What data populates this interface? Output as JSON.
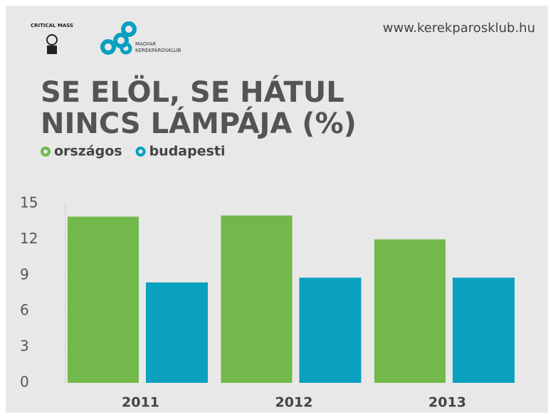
{
  "logos": {
    "critical_mass": "CRITICAL MASS",
    "club_line1": "MAGYAR",
    "club_line2": "KERÉKPÁROSKLUB"
  },
  "chart_data": {
    "type": "bar",
    "source": "www.kerekparosklub.hu",
    "title": [
      "SE ELÖL, SE HÁTUL",
      "NINCS LÁMPÁJA (%)"
    ],
    "categories": [
      "2011",
      "2012",
      "2013"
    ],
    "series": [
      {
        "name": "országos",
        "color": "#72b84a",
        "values": [
          13.9,
          14,
          12
        ]
      },
      {
        "name": "budapesti",
        "color": "#0aa0c0",
        "values": [
          8.4,
          8.8,
          8.8
        ]
      }
    ],
    "ylim": [
      0,
      15
    ],
    "yticks": [
      0,
      3,
      6,
      9,
      12,
      15
    ],
    "grid": false
  }
}
